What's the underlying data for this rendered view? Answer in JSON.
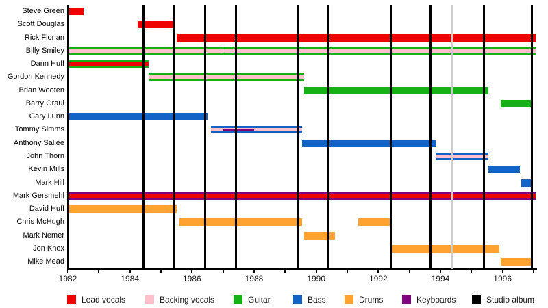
{
  "chart_data": {
    "type": "timeline",
    "subject": "band membership timeline",
    "x_axis": {
      "unit": "year",
      "range": [
        1982,
        1997.07
      ],
      "tick_interval": 1,
      "labeled_years": [
        "1982",
        "1984",
        "1986",
        "1988",
        "1990",
        "1992",
        "1994",
        "1996"
      ]
    },
    "colors": {
      "lead_vocals": "#ee0202",
      "backing_vocals": "#ffc0cb",
      "guitar": "#15b115",
      "bass": "#1362c6",
      "drums": "#ffa230",
      "keyboards": "#800080",
      "studio_album": "#000000",
      "other_release": "#cccccc"
    },
    "release_lines": {
      "studio_albums": [
        1982.02,
        1984.43,
        1985.43,
        1986.42,
        1987.42,
        1989.4,
        1990.4,
        1992.39,
        1993.69,
        1995.4,
        1996.95
      ],
      "other_releases": [
        1994.37
      ]
    },
    "members": [
      {
        "name": "Steve Green",
        "segments": [
          {
            "role": "lead_vocals",
            "from": 1982.0,
            "to": 1982.5,
            "layer": 0
          }
        ]
      },
      {
        "name": "Scott Douglas",
        "segments": [
          {
            "role": "lead_vocals",
            "from": 1984.25,
            "to": 1985.45,
            "layer": 0
          }
        ]
      },
      {
        "name": "Rick Florian",
        "segments": [
          {
            "role": "lead_vocals",
            "from": 1985.5,
            "to": 1997.07,
            "layer": 0
          }
        ]
      },
      {
        "name": "Billy Smiley",
        "segments": [
          {
            "role": "guitar",
            "from": 1982.0,
            "to": 1997.07,
            "layer": 0
          },
          {
            "role": "keyboards",
            "from": 1982.0,
            "to": 1987.0,
            "layer": 1
          },
          {
            "role": "backing_vocals",
            "from": 1982.0,
            "to": 1997.07,
            "layer": 2
          }
        ]
      },
      {
        "name": "Dann Huff",
        "segments": [
          {
            "role": "guitar",
            "from": 1982.0,
            "to": 1984.6,
            "layer": 0
          },
          {
            "role": "lead_vocals",
            "from": 1982.0,
            "to": 1984.6,
            "layer": 2
          }
        ]
      },
      {
        "name": "Gordon Kennedy",
        "segments": [
          {
            "role": "guitar",
            "from": 1984.6,
            "to": 1989.6,
            "layer": 0
          },
          {
            "role": "backing_vocals",
            "from": 1984.6,
            "to": 1989.6,
            "layer": 2
          }
        ]
      },
      {
        "name": "Brian Wooten",
        "segments": [
          {
            "role": "guitar",
            "from": 1989.6,
            "to": 1995.55,
            "layer": 0
          }
        ]
      },
      {
        "name": "Barry Graul",
        "segments": [
          {
            "role": "guitar",
            "from": 1995.95,
            "to": 1996.95,
            "layer": 0
          }
        ]
      },
      {
        "name": "Gary Lunn",
        "segments": [
          {
            "role": "bass",
            "from": 1982.0,
            "to": 1986.5,
            "layer": 0
          }
        ]
      },
      {
        "name": "Tommy Simms",
        "segments": [
          {
            "role": "bass",
            "from": 1986.6,
            "to": 1989.55,
            "layer": 0
          },
          {
            "role": "backing_vocals",
            "from": 1986.6,
            "to": 1989.55,
            "layer": 2
          },
          {
            "role": "keyboards",
            "from": 1987.0,
            "to": 1988.0,
            "layer": 3
          }
        ]
      },
      {
        "name": "Anthony Sallee",
        "segments": [
          {
            "role": "bass",
            "from": 1989.55,
            "to": 1993.85,
            "layer": 0
          }
        ]
      },
      {
        "name": "John Thorn",
        "segments": [
          {
            "role": "bass",
            "from": 1993.85,
            "to": 1995.55,
            "layer": 0
          },
          {
            "role": "backing_vocals",
            "from": 1993.85,
            "to": 1995.55,
            "layer": 2
          }
        ]
      },
      {
        "name": "Kevin Mills",
        "segments": [
          {
            "role": "bass",
            "from": 1995.55,
            "to": 1996.55,
            "layer": 0
          }
        ]
      },
      {
        "name": "Mark Hill",
        "segments": [
          {
            "role": "bass",
            "from": 1996.6,
            "to": 1996.97,
            "layer": 0
          }
        ]
      },
      {
        "name": "Mark Gersmehl",
        "segments": [
          {
            "role": "keyboards",
            "from": 1982.0,
            "to": 1997.07,
            "layer": 0
          },
          {
            "role": "lead_vocals",
            "from": 1982.0,
            "to": 1997.07,
            "layer": 2
          }
        ]
      },
      {
        "name": "David Huff",
        "segments": [
          {
            "role": "drums",
            "from": 1982.0,
            "to": 1985.5,
            "layer": 0
          }
        ]
      },
      {
        "name": "Chris McHugh",
        "segments": [
          {
            "role": "drums",
            "from": 1985.6,
            "to": 1989.55,
            "layer": 0
          },
          {
            "role": "drums",
            "from": 1991.35,
            "to": 1992.4,
            "layer": 0
          }
        ]
      },
      {
        "name": "Mark Nemer",
        "segments": [
          {
            "role": "drums",
            "from": 1989.6,
            "to": 1990.6,
            "layer": 0
          }
        ]
      },
      {
        "name": "Jon Knox",
        "segments": [
          {
            "role": "drums",
            "from": 1992.4,
            "to": 1995.9,
            "layer": 0
          }
        ]
      },
      {
        "name": "Mike Mead",
        "segments": [
          {
            "role": "drums",
            "from": 1995.95,
            "to": 1996.97,
            "layer": 0
          }
        ]
      }
    ],
    "legend": [
      {
        "label": "Lead vocals",
        "role": "lead_vocals"
      },
      {
        "label": "Backing vocals",
        "role": "backing_vocals"
      },
      {
        "label": "Guitar",
        "role": "guitar"
      },
      {
        "label": "Bass",
        "role": "bass"
      },
      {
        "label": "Drums",
        "role": "drums"
      },
      {
        "label": "Keyboards",
        "role": "keyboards"
      },
      {
        "label": "Studio album",
        "role": "studio_album"
      }
    ]
  }
}
